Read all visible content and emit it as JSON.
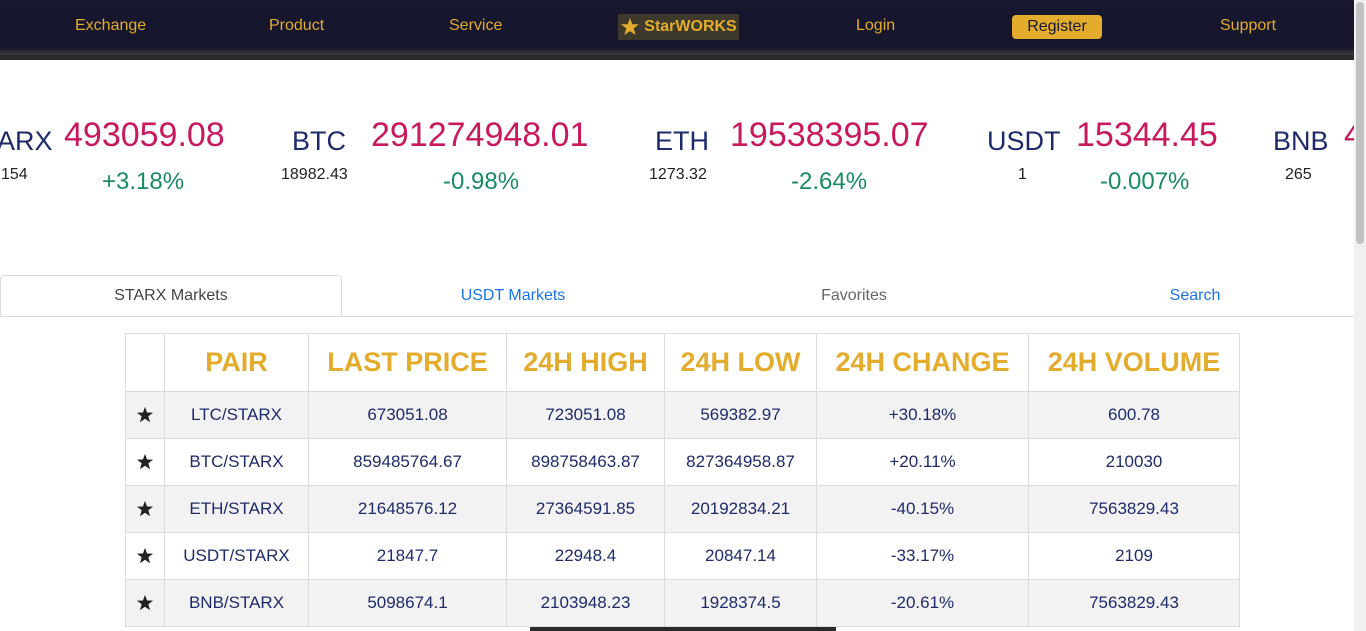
{
  "nav": {
    "exchange": "Exchange",
    "product": "Product",
    "service": "Service",
    "brand": "StarWORKS",
    "login": "Login",
    "register": "Register",
    "support": "Support"
  },
  "ticker": [
    {
      "symbol": "ARX",
      "price": "493059.08",
      "sub": "154",
      "change": "+3.18%"
    },
    {
      "symbol": "BTC",
      "price": "291274948.01",
      "sub": "18982.43",
      "change": "-0.98%"
    },
    {
      "symbol": "ETH",
      "price": "19538395.07",
      "sub": "1273.32",
      "change": "-2.64%"
    },
    {
      "symbol": "USDT",
      "price": "15344.45",
      "sub": "1",
      "change": "-0.007%"
    },
    {
      "symbol": "BNB",
      "price": "4",
      "sub": "265",
      "change": ""
    }
  ],
  "tabs": {
    "starx": "STARX Markets",
    "usdt": "USDT Markets",
    "favorites": "Favorites",
    "search": "Search"
  },
  "table": {
    "headers": [
      "PAIR",
      "LAST PRICE",
      "24H HIGH",
      "24H LOW",
      "24H CHANGE",
      "24H VOLUME"
    ],
    "rows": [
      [
        "LTC/STARX",
        "673051.08",
        "723051.08",
        "569382.97",
        "+30.18%",
        "600.78"
      ],
      [
        "BTC/STARX",
        "859485764.67",
        "898758463.87",
        "827364958.87",
        "+20.11%",
        "210030"
      ],
      [
        "ETH/STARX",
        "21648576.12",
        "27364591.85",
        "20192834.21",
        "-40.15%",
        "7563829.43"
      ],
      [
        "USDT/STARX",
        "21847.7",
        "22948.4",
        "20847.14",
        "-33.17%",
        "2109"
      ],
      [
        "BNB/STARX",
        "5098674.1",
        "2103948.23",
        "1928374.5",
        "-20.61%",
        "7563829.43"
      ]
    ]
  },
  "colors": {
    "nav_bg": "#161630",
    "accent": "#e3ac2c",
    "price": "#c8195f",
    "change": "#1a8a66",
    "text": "#1f2a6b",
    "link": "#1a73e8"
  }
}
